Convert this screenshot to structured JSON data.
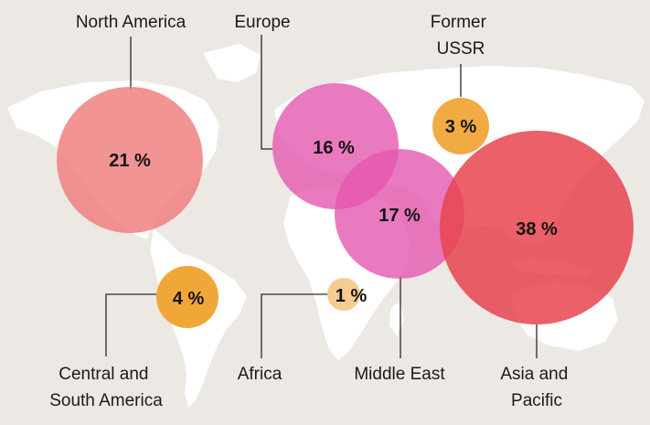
{
  "colors": {
    "background": "#ece8e3",
    "land": "#ffffff",
    "leader_line": "#2a2a2a",
    "pink": "#e455ad",
    "red": "#e8444f",
    "salmon": "#ef7b7d",
    "orange": "#f0a22d",
    "peach": "#f6c98a"
  },
  "regions": [
    {
      "id": "north-america",
      "label_lines": [
        "North America"
      ],
      "percent_label": "21 %",
      "value": 21,
      "color": "salmon",
      "opacity": 0.82
    },
    {
      "id": "europe",
      "label_lines": [
        "Europe"
      ],
      "percent_label": "16 %",
      "value": 16,
      "color": "pink",
      "opacity": 0.78
    },
    {
      "id": "former-ussr",
      "label_lines": [
        "Former",
        "USSR"
      ],
      "percent_label": "3 %",
      "value": 3,
      "color": "orange",
      "opacity": 0.9
    },
    {
      "id": "middle-east",
      "label_lines": [
        "Middle East"
      ],
      "percent_label": "17 %",
      "value": 17,
      "color": "pink",
      "opacity": 0.78
    },
    {
      "id": "asia-pacific",
      "label_lines": [
        "Asia and",
        "Pacific"
      ],
      "percent_label": "38 %",
      "value": 38,
      "color": "red",
      "opacity": 0.85
    },
    {
      "id": "central-south-america",
      "label_lines": [
        "Central and",
        "South America"
      ],
      "percent_label": "4 %",
      "value": 4,
      "color": "orange",
      "opacity": 0.95
    },
    {
      "id": "africa",
      "label_lines": [
        "Africa"
      ],
      "percent_label": "1 %",
      "value": 1,
      "color": "peach",
      "opacity": 0.95
    }
  ]
}
